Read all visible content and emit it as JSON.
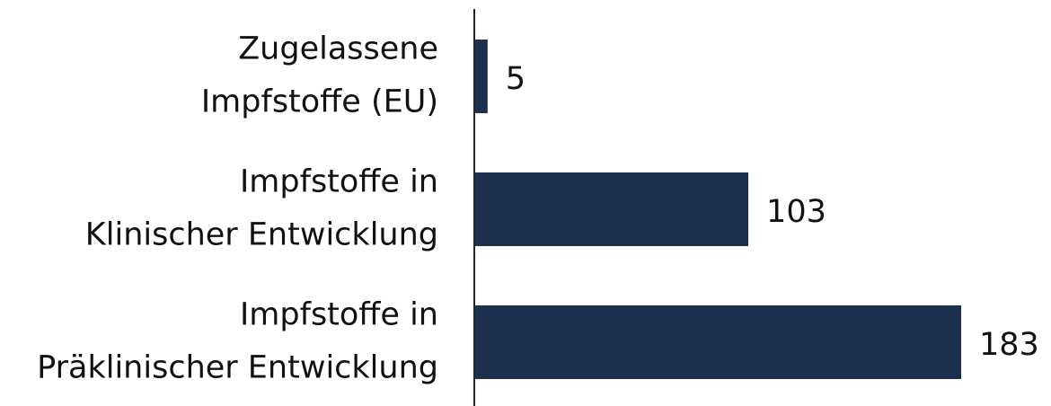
{
  "chart_data": {
    "type": "bar",
    "orientation": "horizontal",
    "categories": [
      "Zugelassene\nImpfstoffe (EU)",
      "Impfstoffe in\nKlinischer Entwicklung",
      "Impfstoffe in\nPräklinischer Entwicklung"
    ],
    "values": [
      5,
      103,
      183
    ],
    "color": "#1c2f4f"
  }
}
